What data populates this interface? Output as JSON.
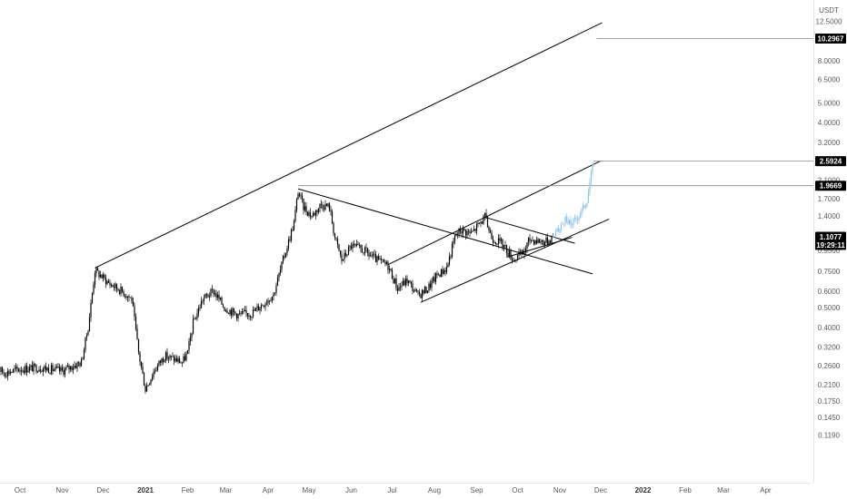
{
  "chart_data": {
    "type": "candlestick",
    "scale": "log",
    "ylim": [
      0.105,
      13.0
    ],
    "unit": "USDT",
    "colors": {
      "candle": "#000000",
      "projection": "#90c3ea",
      "trendline": "#000000",
      "hline": "#888888",
      "badge_bg": "#000000"
    },
    "x_ticks": [
      {
        "label": "Oct",
        "date": "2020-10-01"
      },
      {
        "label": "Nov",
        "date": "2020-11-01"
      },
      {
        "label": "Dec",
        "date": "2020-12-01"
      },
      {
        "label": "2021",
        "date": "2021-01-01",
        "bold": true
      },
      {
        "label": "Feb",
        "date": "2021-02-01"
      },
      {
        "label": "Mar",
        "date": "2021-03-01"
      },
      {
        "label": "Apr",
        "date": "2021-04-01"
      },
      {
        "label": "May",
        "date": "2021-05-01"
      },
      {
        "label": "Jun",
        "date": "2021-06-01"
      },
      {
        "label": "Jul",
        "date": "2021-07-01"
      },
      {
        "label": "Aug",
        "date": "2021-08-01"
      },
      {
        "label": "Sep",
        "date": "2021-09-01"
      },
      {
        "label": "Oct",
        "date": "2021-10-01"
      },
      {
        "label": "Nov",
        "date": "2021-11-01"
      },
      {
        "label": "Dec",
        "date": "2021-12-01"
      },
      {
        "label": "2022",
        "date": "2022-01-01",
        "bold": true
      },
      {
        "label": "Feb",
        "date": "2022-02-01"
      },
      {
        "label": "Mar",
        "date": "2022-03-01"
      },
      {
        "label": "Apr",
        "date": "2022-04-01"
      }
    ],
    "y_ticks": [
      "12.5000",
      "8.0000",
      "6.5000",
      "5.0000",
      "4.0000",
      "3.2000",
      "2.1000",
      "1.7000",
      "1.4000",
      "0.9500",
      "0.7500",
      "0.6000",
      "0.5000",
      "0.4000",
      "0.3200",
      "0.2600",
      "0.2100",
      "0.1750",
      "0.1450",
      "0.1190"
    ],
    "price_path": [
      [
        "2020-09-10",
        0.26
      ],
      [
        "2020-09-20",
        0.24
      ],
      [
        "2020-10-01",
        0.25
      ],
      [
        "2020-10-15",
        0.255
      ],
      [
        "2020-11-01",
        0.245
      ],
      [
        "2020-11-15",
        0.27
      ],
      [
        "2020-11-20",
        0.4
      ],
      [
        "2020-11-25",
        0.76
      ],
      [
        "2020-12-05",
        0.66
      ],
      [
        "2020-12-15",
        0.6
      ],
      [
        "2020-12-22",
        0.55
      ],
      [
        "2020-12-27",
        0.3
      ],
      [
        "2021-01-01",
        0.2
      ],
      [
        "2021-01-08",
        0.25
      ],
      [
        "2021-01-15",
        0.29
      ],
      [
        "2021-01-22",
        0.28
      ],
      [
        "2021-01-28",
        0.27
      ],
      [
        "2021-02-01",
        0.3
      ],
      [
        "2021-02-05",
        0.42
      ],
      [
        "2021-02-12",
        0.55
      ],
      [
        "2021-02-20",
        0.6
      ],
      [
        "2021-02-28",
        0.5
      ],
      [
        "2021-03-10",
        0.46
      ],
      [
        "2021-03-20",
        0.47
      ],
      [
        "2021-03-28",
        0.52
      ],
      [
        "2021-04-05",
        0.58
      ],
      [
        "2021-04-12",
        0.85
      ],
      [
        "2021-04-20",
        1.3
      ],
      [
        "2021-04-23",
        1.85
      ],
      [
        "2021-04-27",
        1.55
      ],
      [
        "2021-05-03",
        1.4
      ],
      [
        "2021-05-10",
        1.6
      ],
      [
        "2021-05-16",
        1.55
      ],
      [
        "2021-05-20",
        1.1
      ],
      [
        "2021-05-25",
        0.85
      ],
      [
        "2021-06-01",
        1.0
      ],
      [
        "2021-06-10",
        0.95
      ],
      [
        "2021-06-20",
        0.85
      ],
      [
        "2021-06-28",
        0.8
      ],
      [
        "2021-07-05",
        0.62
      ],
      [
        "2021-07-12",
        0.68
      ],
      [
        "2021-07-20",
        0.57
      ],
      [
        "2021-07-27",
        0.62
      ],
      [
        "2021-08-03",
        0.72
      ],
      [
        "2021-08-10",
        0.78
      ],
      [
        "2021-08-16",
        1.1
      ],
      [
        "2021-08-20",
        1.2
      ],
      [
        "2021-08-28",
        1.15
      ],
      [
        "2021-09-07",
        1.38
      ],
      [
        "2021-09-12",
        1.1
      ],
      [
        "2021-09-20",
        1.02
      ],
      [
        "2021-09-28",
        0.86
      ],
      [
        "2021-10-05",
        0.92
      ],
      [
        "2021-10-10",
        1.08
      ],
      [
        "2021-10-16",
        1.06
      ],
      [
        "2021-10-22",
        1.05
      ],
      [
        "2021-10-27",
        1.1077
      ]
    ],
    "projection_path": [
      [
        "2021-10-27",
        1.1077
      ],
      [
        "2021-11-01",
        1.2
      ],
      [
        "2021-11-04",
        1.34
      ],
      [
        "2021-11-07",
        1.28
      ],
      [
        "2021-11-11",
        1.3
      ],
      [
        "2021-11-15",
        1.42
      ],
      [
        "2021-11-18",
        1.52
      ],
      [
        "2021-11-21",
        1.7
      ],
      [
        "2021-11-23",
        2.05
      ],
      [
        "2021-11-25",
        2.4
      ],
      [
        "2021-11-26",
        2.5924
      ]
    ],
    "trendlines": [
      {
        "from": [
          "2020-11-25",
          0.78
        ],
        "to": [
          "2021-12-02",
          12.3
        ]
      },
      {
        "from": [
          "2021-04-23",
          1.9
        ],
        "to": [
          "2021-11-25",
          0.73
        ]
      },
      {
        "from": [
          "2021-06-28",
          0.81
        ],
        "to": [
          "2021-12-01",
          2.6
        ]
      },
      {
        "from": [
          "2021-07-22",
          0.53
        ],
        "to": [
          "2021-12-07",
          1.35
        ]
      },
      {
        "from": [
          "2021-09-07",
          1.38
        ],
        "to": [
          "2021-11-12",
          1.03
        ]
      },
      {
        "from": [
          "2021-09-23",
          0.88
        ],
        "to": [
          "2021-11-10",
          1.1
        ]
      }
    ],
    "hlines": [
      {
        "from": "2021-11-28",
        "value": 10.2967
      },
      {
        "from": "2021-11-26",
        "value": 2.5924
      },
      {
        "from": "2021-04-23",
        "value": 1.9669
      }
    ],
    "price_labels": [
      {
        "value": 10.2967,
        "text": "10.2967"
      },
      {
        "value": 2.5924,
        "text": "2.5924"
      },
      {
        "value": 1.9669,
        "text": "1.9669"
      },
      {
        "value": 1.1077,
        "text": "1.1077",
        "sub": "19:29:11"
      }
    ]
  }
}
